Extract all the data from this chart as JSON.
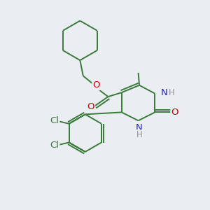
{
  "bg_color": "#eaeef2",
  "bond_color": "#3a7a3a",
  "atom_N": "#2020c8",
  "atom_O": "#c80000",
  "atom_Cl": "#3a7a3a",
  "atom_H": "#909090",
  "bond_width": 1.4,
  "figsize": [
    3.0,
    3.0
  ],
  "dpi": 100,
  "xlim": [
    0,
    10
  ],
  "ylim": [
    0,
    10
  ]
}
